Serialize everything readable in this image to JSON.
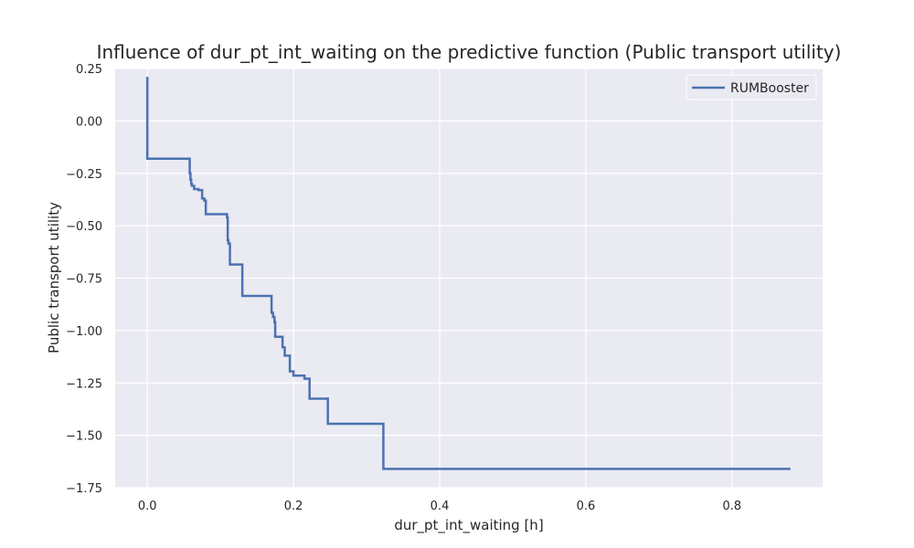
{
  "chart_data": {
    "type": "line",
    "title": "Influence of dur_pt_int_waiting on the predictive function (Public transport utility)",
    "xlabel": "dur_pt_int_waiting [h]",
    "ylabel": "Public transport utility",
    "xlim": [
      -0.044,
      0.924
    ],
    "ylim": [
      -1.75,
      0.25
    ],
    "xticks": [
      0.0,
      0.2,
      0.4,
      0.6,
      0.8
    ],
    "xtick_labels": [
      "0.0",
      "0.2",
      "0.4",
      "0.6",
      "0.8"
    ],
    "yticks": [
      0.25,
      0.0,
      -0.25,
      -0.5,
      -0.75,
      -1.0,
      -1.25,
      -1.5,
      -1.75
    ],
    "ytick_labels": [
      "0.25",
      "0.00",
      "−0.25",
      "−0.50",
      "−0.75",
      "−1.00",
      "−1.25",
      "−1.50",
      "−1.75"
    ],
    "grid": true,
    "legend": "top-right",
    "colors": {
      "background": "#eaeaf2",
      "grid": "#ffffff",
      "series": "#4c72b0"
    },
    "series": [
      {
        "name": "RUMBooster",
        "step": "post",
        "x": [
          0.0,
          0.0,
          0.058,
          0.059,
          0.06,
          0.061,
          0.064,
          0.07,
          0.075,
          0.078,
          0.08,
          0.109,
          0.11,
          0.111,
          0.113,
          0.13,
          0.17,
          0.172,
          0.174,
          0.175,
          0.185,
          0.188,
          0.195,
          0.2,
          0.215,
          0.222,
          0.247,
          0.26,
          0.323,
          0.88
        ],
        "y": [
          0.21,
          -0.18,
          -0.25,
          -0.28,
          -0.3,
          -0.31,
          -0.325,
          -0.33,
          -0.37,
          -0.38,
          -0.445,
          -0.46,
          -0.57,
          -0.585,
          -0.685,
          -0.835,
          -0.915,
          -0.935,
          -0.96,
          -1.03,
          -1.08,
          -1.12,
          -1.195,
          -1.215,
          -1.23,
          -1.325,
          -1.445,
          -1.445,
          -1.66,
          -1.66
        ]
      }
    ]
  }
}
